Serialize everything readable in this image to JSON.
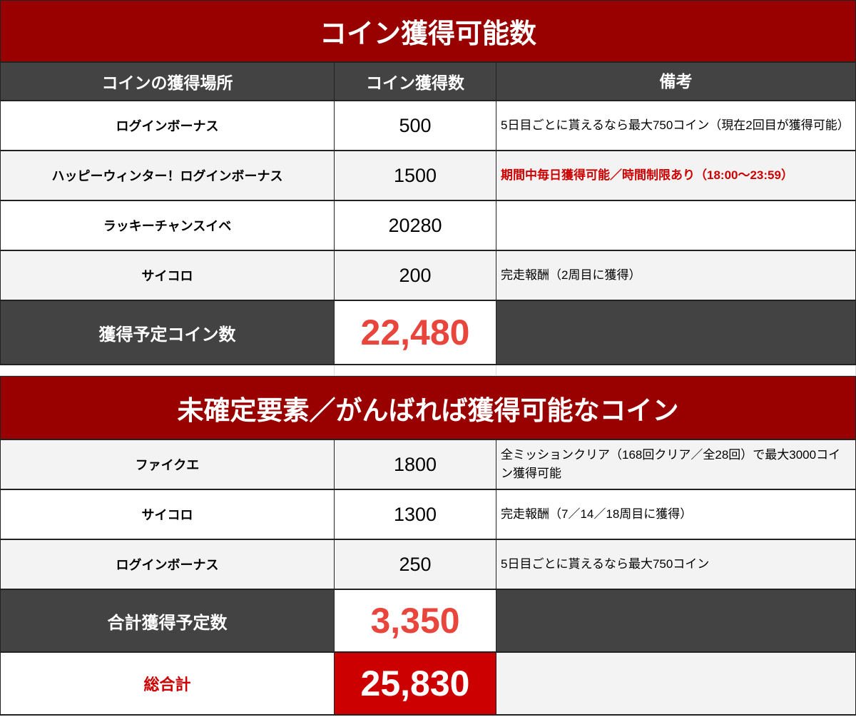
{
  "section1": {
    "title": "コイン獲得可能数",
    "headers": [
      "コインの獲得場所",
      "コイン獲得数",
      "備考"
    ],
    "rows": [
      {
        "place": "ログインボーナス",
        "coins": "500",
        "note": "5日目ごとに貰えるなら最大750コイン（現在2回目が獲得可能）"
      },
      {
        "place": "ハッピーウィンター！ログインボーナス",
        "coins": "1500",
        "note": "期間中毎日獲得可能／時間制限あり（18:00〜23:59）"
      },
      {
        "place": "ラッキーチャンスイベ",
        "coins": "20280",
        "note": ""
      },
      {
        "place": "サイコロ",
        "coins": "200",
        "note": "完走報酬（2周目に獲得）"
      }
    ],
    "total_label": "獲得予定コイン数",
    "total_value": "22,480"
  },
  "section2": {
    "title": "未確定要素／がんばれば獲得可能なコイン",
    "rows": [
      {
        "place": "ファイクエ",
        "coins": "1800",
        "note": "全ミッションクリア（168回クリア／全28回）で最大3000コイン獲得可能"
      },
      {
        "place": "サイコロ",
        "coins": "1300",
        "note": "完走報酬（7／14／18周目に獲得）"
      },
      {
        "place": "ログインボーナス",
        "coins": "250",
        "note": "5日目ごとに貰えるなら最大750コイン"
      }
    ],
    "total_label": "合計獲得予定数",
    "total_value": "3,350"
  },
  "grand_total": {
    "label": "総合計",
    "value": "25,830"
  },
  "colors": {
    "title_bg": "#990000",
    "header_bg": "#434343",
    "total_number": "#e8453c",
    "grand_bg": "#cc0000",
    "highlight_note": "#cc0000"
  }
}
